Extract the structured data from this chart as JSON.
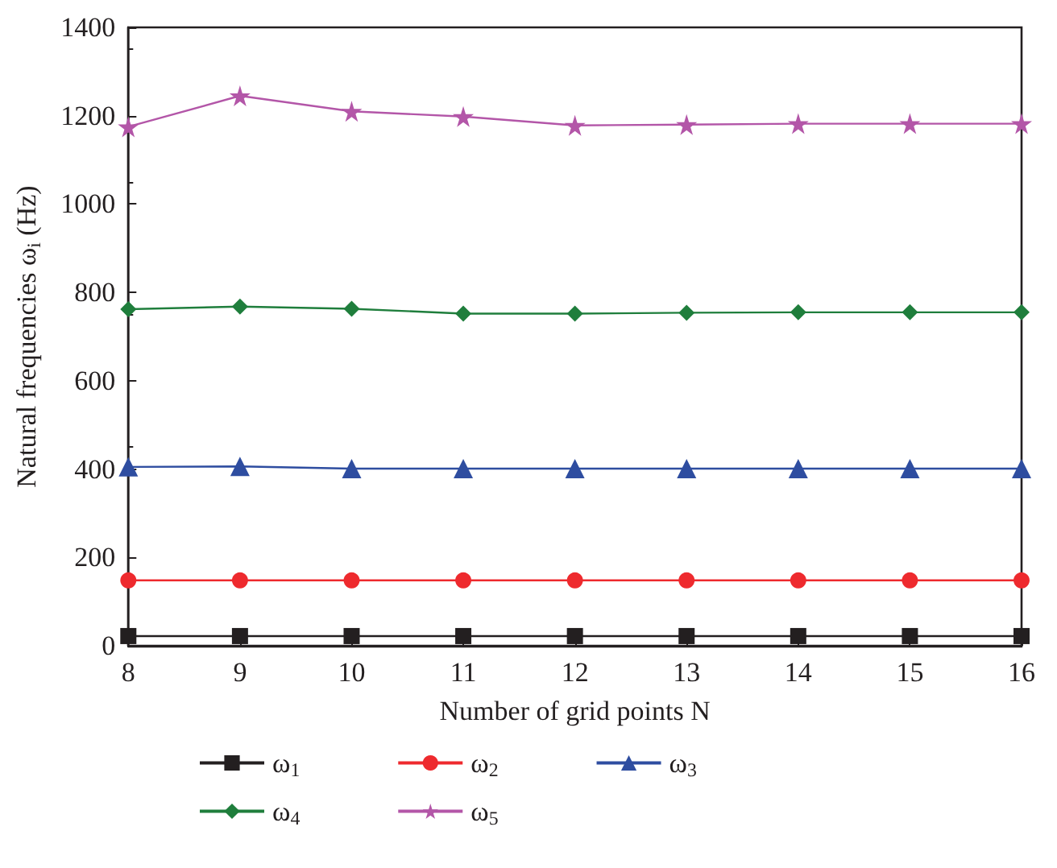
{
  "chart_data": {
    "type": "line",
    "xlabel": "Number of grid points N",
    "ylabel": "Natural frequencies ω$_{i}$ (Hz)",
    "x": [
      8,
      9,
      10,
      11,
      12,
      13,
      14,
      15,
      16
    ],
    "xlim": [
      8,
      16
    ],
    "xticks": [
      8,
      9,
      10,
      11,
      12,
      13,
      14,
      15,
      16
    ],
    "ylim": [
      0,
      1400
    ],
    "yticks": [
      0,
      200,
      400,
      600,
      800,
      1000,
      1200,
      1400
    ],
    "grid": false,
    "legend": "bottom",
    "line_style": "solid",
    "series": [
      {
        "name": "ω$_{1}$",
        "color": "#231f20",
        "marker": "square",
        "values": [
          22,
          22,
          22,
          22,
          22,
          22,
          22,
          22,
          22
        ]
      },
      {
        "name": "ω$_{2}$",
        "color": "#ee2a2e",
        "marker": "circle",
        "values": [
          148,
          148,
          148,
          148,
          148,
          148,
          148,
          148,
          148
        ]
      },
      {
        "name": "ω$_{3}$",
        "color": "#2e4da0",
        "marker": "triangle",
        "values": [
          405,
          406,
          401,
          401,
          401,
          401,
          401,
          401,
          401
        ]
      },
      {
        "name": "ω$_{4}$",
        "color": "#1f7e3c",
        "marker": "diamond",
        "values": [
          762,
          768,
          763,
          752,
          752,
          754,
          755,
          755,
          755
        ]
      },
      {
        "name": "ω$_{5}$",
        "color": "#b356a8",
        "marker": "star",
        "values": [
          1175,
          1245,
          1210,
          1198,
          1178,
          1180,
          1182,
          1182,
          1182
        ]
      }
    ]
  }
}
